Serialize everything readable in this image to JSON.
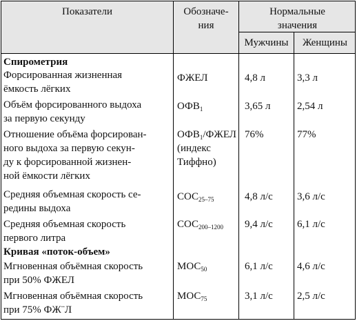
{
  "header": {
    "col1": "Показатели",
    "col2_line1": "Обозначе-",
    "col2_line2": "ния",
    "col3_line1": "Нормальные",
    "col3_line2": "значения",
    "men": "Мужчины",
    "women": "Женщины"
  },
  "sections": [
    {
      "title": "Спирометрия",
      "rows": [
        {
          "name": [
            "Форсированная жизненная",
            "ёмкость лёгких"
          ],
          "symbol": "ФЖЕЛ",
          "sub": "",
          "symbol_extra": [],
          "men": "4,8  л",
          "women": "3,3  л"
        },
        {
          "name": [
            "Объём форсированного выдоха",
            "за первую секунду"
          ],
          "symbol": "ОФВ",
          "sub": "1",
          "symbol_extra": [],
          "men": "3,65  л",
          "women": "2,54  л"
        },
        {
          "name": [
            "Отношение объёма форсирован-",
            "ного выдоха за первую секун-",
            "ду к форсированной жизнен-",
            "ной ёмкости лёгких"
          ],
          "symbol": "ОФВ",
          "sub": "1",
          "symbol_tail": "/ФЖЕЛ",
          "symbol_extra": [
            "(индекс",
            "Тиффно)"
          ],
          "men": "76%",
          "women": "77%"
        },
        {
          "name": [
            "Средняя объемная скорость се-",
            "редины выдоха"
          ],
          "symbol": "СОС",
          "sub": "25–75",
          "symbol_extra": [],
          "men": "4,8  л/с",
          "women": "3,6  л/с"
        },
        {
          "name": [
            "Средняя объемная скорость",
            "первого литра"
          ],
          "symbol": "СОС",
          "sub": "200–1200",
          "symbol_extra": [],
          "men": "9,4  л/с",
          "women": "6,1  л/с"
        }
      ]
    },
    {
      "title": "Кривая  «поток-объем»",
      "rows": [
        {
          "name": [
            "Мгновенная объёмная скорость",
            "при 50% ФЖЕЛ"
          ],
          "symbol": "МОС",
          "sub": "50",
          "symbol_extra": [],
          "men": "6,1  л/с",
          "women": "4,6  л/с"
        },
        {
          "name": [
            "Мгновенная объёмная скорость",
            "при 75%  ФЖ¨Л"
          ],
          "symbol": "МОС",
          "sub": "75",
          "symbol_extra": [],
          "men": "3,1  л/с",
          "women": "2,5  л/с"
        }
      ]
    }
  ]
}
